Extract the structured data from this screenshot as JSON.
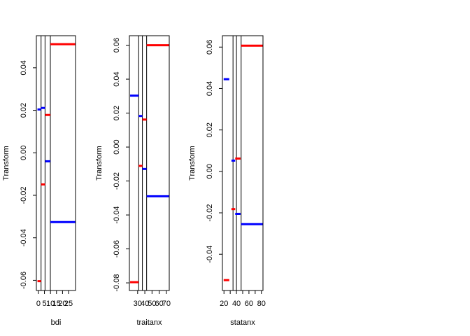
{
  "chart_data": [
    {
      "type": "step",
      "xlabel": "bdi",
      "ylabel": "Transform",
      "xlim": [
        -1.7,
        30.8
      ],
      "ylim": [
        -0.0648,
        0.0551
      ],
      "xticks": [
        0,
        5,
        10,
        15,
        20,
        25
      ],
      "xtick_labels": [
        "0",
        "5",
        "10",
        "15",
        "20",
        "25"
      ],
      "yticks": [
        -0.06,
        -0.04,
        -0.02,
        0.0,
        0.02,
        0.04
      ],
      "ytick_labels": [
        "-0.06",
        "-0.04",
        "-0.02",
        "0.00",
        "0.02",
        "0.04"
      ],
      "cutpoints": [
        2.2,
        5.5,
        9.9
      ],
      "segments": [
        {
          "x0": -0.8,
          "x1": 2.2,
          "y": -0.0604,
          "color": "#ff0000"
        },
        {
          "x0": -0.8,
          "x1": 2.2,
          "y": 0.0204,
          "color": "#0000ff"
        },
        {
          "x0": 2.2,
          "x1": 5.5,
          "y": -0.0149,
          "color": "#ff0000"
        },
        {
          "x0": 2.2,
          "x1": 5.5,
          "y": 0.0211,
          "color": "#0000ff"
        },
        {
          "x0": 5.5,
          "x1": 9.9,
          "y": 0.0178,
          "color": "#ff0000"
        },
        {
          "x0": 5.5,
          "x1": 9.9,
          "y": -0.004,
          "color": "#0000ff"
        },
        {
          "x0": 9.9,
          "x1": 30.8,
          "y": 0.0511,
          "color": "#ff0000"
        },
        {
          "x0": 9.9,
          "x1": 30.8,
          "y": -0.0326,
          "color": "#0000ff"
        }
      ]
    },
    {
      "type": "step",
      "xlabel": "traitanx",
      "ylabel": "Transform",
      "xlim": [
        18.5,
        74.0
      ],
      "ylim": [
        -0.0845,
        0.0656
      ],
      "xticks": [
        30,
        40,
        50,
        60,
        70
      ],
      "xtick_labels": [
        "30",
        "40",
        "50",
        "60",
        "70"
      ],
      "yticks": [
        -0.08,
        -0.06,
        -0.04,
        -0.02,
        0.0,
        0.02,
        0.04,
        0.06
      ],
      "ytick_labels": [
        "-0.08",
        "-0.06",
        "-0.04",
        "-0.02",
        "0.00",
        "0.02",
        "0.04",
        "0.06"
      ],
      "cutpoints": [
        31.4,
        36.6,
        42.5
      ],
      "segments": [
        {
          "x0": 19.5,
          "x1": 31.4,
          "y": -0.0796,
          "color": "#ff0000"
        },
        {
          "x0": 19.5,
          "x1": 31.4,
          "y": 0.0303,
          "color": "#0000ff"
        },
        {
          "x0": 31.4,
          "x1": 36.6,
          "y": -0.0111,
          "color": "#ff0000"
        },
        {
          "x0": 31.4,
          "x1": 36.6,
          "y": 0.0183,
          "color": "#0000ff"
        },
        {
          "x0": 36.6,
          "x1": 42.5,
          "y": 0.0162,
          "color": "#ff0000"
        },
        {
          "x0": 36.6,
          "x1": 42.5,
          "y": -0.0129,
          "color": "#0000ff"
        },
        {
          "x0": 42.5,
          "x1": 74.0,
          "y": 0.06,
          "color": "#ff0000"
        },
        {
          "x0": 42.5,
          "x1": 74.0,
          "y": -0.029,
          "color": "#0000ff"
        }
      ]
    },
    {
      "type": "step",
      "xlabel": "statanx",
      "ylabel": "Transform",
      "xlim": [
        17.5,
        82.5
      ],
      "ylim": [
        -0.0575,
        0.0655
      ],
      "xticks": [
        20,
        30,
        40,
        50,
        60,
        70,
        80
      ],
      "xtick_labels": [
        "20",
        "",
        "40",
        "",
        "60",
        "",
        "80"
      ],
      "yticks": [
        -0.04,
        -0.02,
        0.0,
        0.02,
        0.04,
        0.06
      ],
      "ytick_labels": [
        "-0.04",
        "-0.02",
        "0.00",
        "0.02",
        "0.04",
        "0.06"
      ],
      "cutpoints": [
        34.5,
        40.0,
        47.5
      ],
      "segments": [
        {
          "x0": 19.5,
          "x1": 28.5,
          "y": -0.0525,
          "color": "#ff0000"
        },
        {
          "x0": 19.5,
          "x1": 28.5,
          "y": 0.0445,
          "color": "#0000ff"
        },
        {
          "x0": 32.0,
          "x1": 38.0,
          "y": -0.0182,
          "color": "#ff0000"
        },
        {
          "x0": 32.0,
          "x1": 38.0,
          "y": 0.0052,
          "color": "#0000ff"
        },
        {
          "x0": 38.0,
          "x1": 46.5,
          "y": 0.0062,
          "color": "#ff0000"
        },
        {
          "x0": 38.0,
          "x1": 46.5,
          "y": -0.0205,
          "color": "#0000ff"
        },
        {
          "x0": 47.5,
          "x1": 82.5,
          "y": 0.0607,
          "color": "#ff0000"
        },
        {
          "x0": 47.5,
          "x1": 82.5,
          "y": -0.0255,
          "color": "#0000ff"
        }
      ]
    }
  ]
}
